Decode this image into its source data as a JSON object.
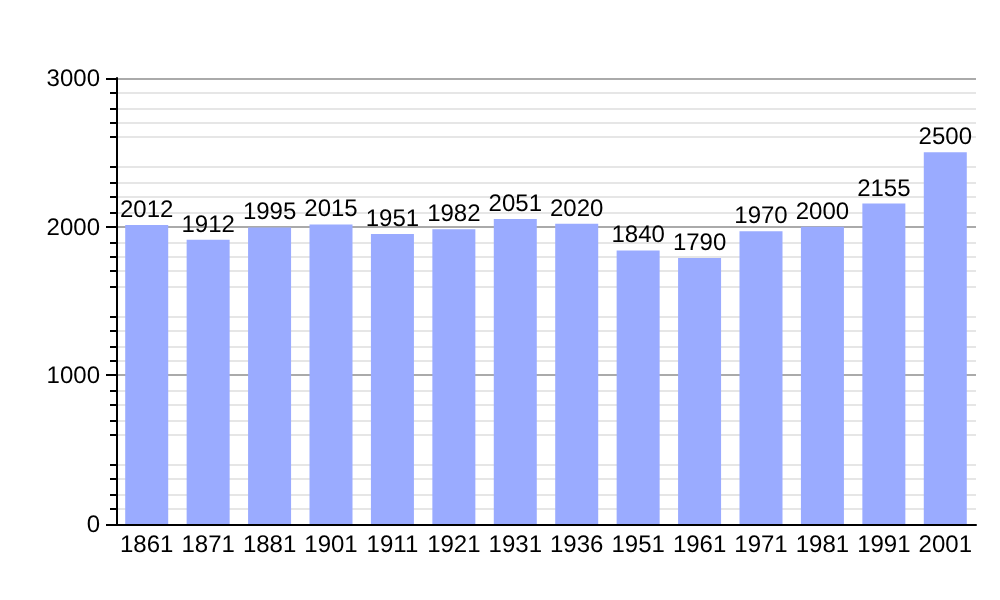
{
  "chart_data": {
    "type": "bar",
    "categories": [
      "1861",
      "1871",
      "1881",
      "1901",
      "1911",
      "1921",
      "1931",
      "1936",
      "1951",
      "1961",
      "1971",
      "1981",
      "1991",
      "2001"
    ],
    "values": [
      2012,
      1912,
      1995,
      2015,
      1951,
      1982,
      2051,
      2020,
      1840,
      1790,
      1970,
      2000,
      2155,
      2500
    ],
    "color": "#9aabff",
    "ylim": [
      0,
      3000
    ],
    "yticks": [
      0,
      1000,
      2000,
      3000
    ],
    "grid": true,
    "data_labels": true
  }
}
